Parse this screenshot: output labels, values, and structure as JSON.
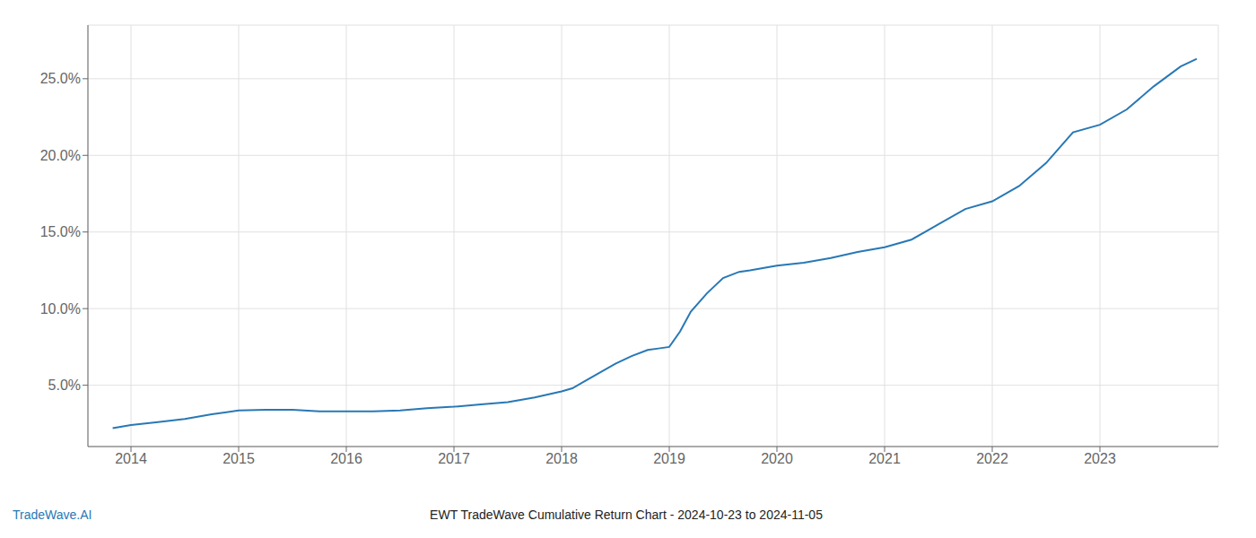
{
  "chart_data": {
    "type": "line",
    "title": "EWT TradeWave Cumulative Return Chart - 2024-10-23 to 2024-11-05",
    "annotations": [
      {
        "text": "TradeWave.AI"
      }
    ],
    "x": [
      2013.83,
      2014.0,
      2014.25,
      2014.5,
      2014.75,
      2015.0,
      2015.25,
      2015.5,
      2015.75,
      2016.0,
      2016.25,
      2016.5,
      2016.75,
      2017.0,
      2017.25,
      2017.5,
      2017.75,
      2018.0,
      2018.1,
      2018.2,
      2018.35,
      2018.5,
      2018.65,
      2018.8,
      2018.9,
      2019.0,
      2019.1,
      2019.2,
      2019.35,
      2019.5,
      2019.65,
      2019.75,
      2020.0,
      2020.25,
      2020.5,
      2020.75,
      2021.0,
      2021.25,
      2021.5,
      2021.75,
      2022.0,
      2022.25,
      2022.5,
      2022.75,
      2023.0,
      2023.25,
      2023.5,
      2023.75,
      2023.9
    ],
    "values": [
      2.2,
      2.4,
      2.6,
      2.8,
      3.1,
      3.35,
      3.4,
      3.4,
      3.3,
      3.3,
      3.3,
      3.35,
      3.5,
      3.6,
      3.75,
      3.9,
      4.2,
      4.6,
      4.8,
      5.2,
      5.8,
      6.4,
      6.9,
      7.3,
      7.4,
      7.5,
      8.5,
      9.8,
      11.0,
      12.0,
      12.4,
      12.5,
      12.8,
      13.0,
      13.3,
      13.7,
      14.0,
      14.5,
      15.5,
      16.5,
      17.0,
      18.0,
      19.5,
      21.5,
      22.0,
      23.0,
      24.5,
      25.8,
      26.3
    ],
    "color": "#2878b5",
    "xlim": [
      2013.6,
      2024.1
    ],
    "xticks": [
      2014,
      2015,
      2016,
      2017,
      2018,
      2019,
      2020,
      2021,
      2022,
      2023
    ],
    "ylim": [
      1.0,
      28.5
    ],
    "yticks": [
      {
        "value": 5.0,
        "label": "5.0%"
      },
      {
        "value": 10.0,
        "label": "10.0%"
      },
      {
        "value": 15.0,
        "label": "15.0%"
      },
      {
        "value": 20.0,
        "label": "20.0%"
      },
      {
        "value": 25.0,
        "label": "25.0%"
      }
    ],
    "grid": true
  }
}
